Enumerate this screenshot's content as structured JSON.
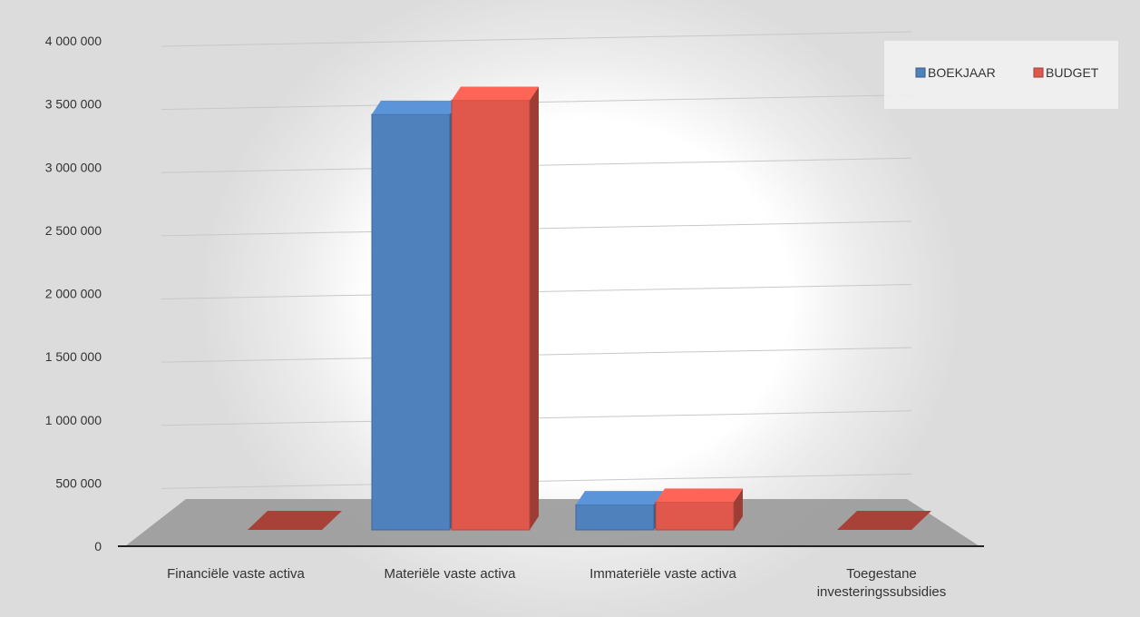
{
  "chart_data": {
    "type": "bar",
    "title": "",
    "xlabel": "",
    "ylabel": "",
    "ylim": [
      0,
      4000000
    ],
    "y_ticks": [
      "0",
      "500 000",
      "1 000 000",
      "1 500 000",
      "2 000 000",
      "2 500 000",
      "3 000 000",
      "3 500 000",
      "4 000 000"
    ],
    "categories": [
      [
        "Financiële vaste activa"
      ],
      [
        "Materiële vaste activa"
      ],
      [
        "Immateriële vaste activa"
      ],
      [
        "Toegestane",
        "investeringssubsidies"
      ]
    ],
    "series": [
      {
        "name": "BOEKJAAR",
        "color": "#4f81bd",
        "values": [
          0,
          3290000,
          200000,
          0
        ]
      },
      {
        "name": "BUDGET",
        "color": "#e0584b",
        "values": [
          0,
          3400000,
          220000,
          0
        ]
      }
    ],
    "legend": {
      "position": "top-right"
    },
    "grid": true,
    "style": "3d-column"
  }
}
